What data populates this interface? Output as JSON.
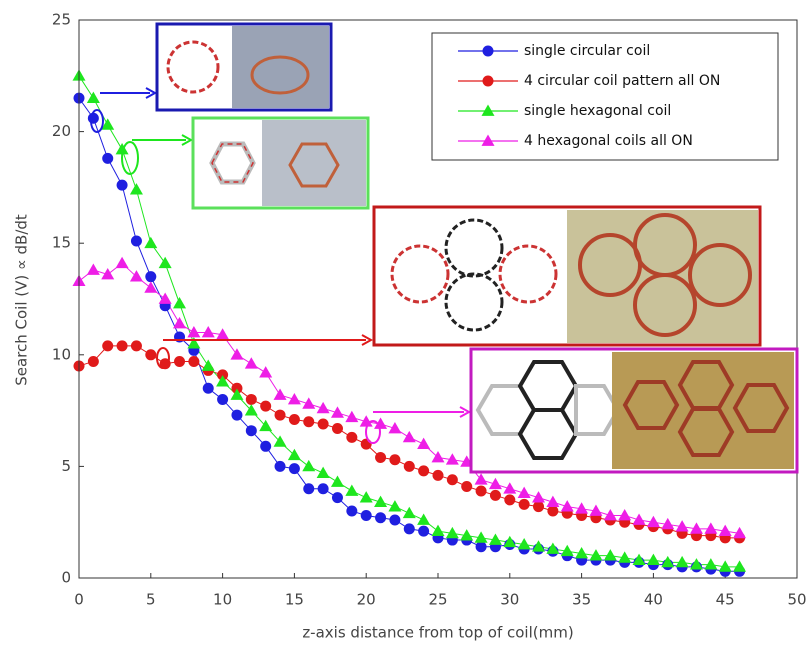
{
  "chart_data": {
    "type": "line",
    "x_label": "z-axis distance from top of coil(mm)",
    "y_label": "Search Coil (V) ∝ dB/dt",
    "x": [
      0,
      1,
      2,
      3,
      4,
      5,
      6,
      7,
      8,
      9,
      10,
      11,
      12,
      13,
      14,
      15,
      16,
      17,
      18,
      19,
      20,
      21,
      22,
      23,
      24,
      25,
      26,
      27,
      28,
      29,
      30,
      31,
      32,
      33,
      34,
      35,
      36,
      37,
      38,
      39,
      40,
      41,
      42,
      43,
      44,
      45,
      46
    ],
    "xlim": [
      0,
      50
    ],
    "xticks": [
      0,
      5,
      10,
      15,
      20,
      25,
      30,
      35,
      40,
      45,
      50
    ],
    "ylim": [
      0,
      25
    ],
    "yticks": [
      0,
      5,
      10,
      15,
      20,
      25
    ],
    "legend": "upper right",
    "series": [
      {
        "name": "single circular coil",
        "color": "#1f1fe0",
        "marker": "o",
        "values": [
          21.5,
          20.6,
          18.8,
          17.6,
          15.1,
          13.5,
          12.2,
          10.8,
          10.2,
          8.5,
          8.0,
          7.3,
          6.6,
          5.9,
          5.0,
          4.9,
          4.0,
          4.0,
          3.6,
          3.0,
          2.8,
          2.7,
          2.6,
          2.2,
          2.1,
          1.8,
          1.7,
          1.7,
          1.4,
          1.4,
          1.5,
          1.3,
          1.3,
          1.2,
          1.0,
          0.8,
          0.8,
          0.8,
          0.7,
          0.7,
          0.6,
          0.6,
          0.5,
          0.5,
          0.4,
          0.3,
          0.3
        ]
      },
      {
        "name": "4 circular coil pattern all ON",
        "color": "#e01a1a",
        "marker": "o",
        "values": [
          9.5,
          9.7,
          10.4,
          10.4,
          10.4,
          10.0,
          9.6,
          9.7,
          9.7,
          9.3,
          9.1,
          8.5,
          8.0,
          7.7,
          7.3,
          7.1,
          7.0,
          6.9,
          6.7,
          6.3,
          6.0,
          5.4,
          5.3,
          5.0,
          4.8,
          4.6,
          4.4,
          4.1,
          3.9,
          3.7,
          3.5,
          3.3,
          3.2,
          3.0,
          2.9,
          2.8,
          2.7,
          2.6,
          2.5,
          2.4,
          2.3,
          2.2,
          2.0,
          1.9,
          1.9,
          1.8,
          1.8
        ]
      },
      {
        "name": "single hexagonal coil",
        "color": "#1ee61e",
        "marker": "^",
        "values": [
          22.5,
          21.5,
          20.3,
          19.2,
          17.4,
          15.0,
          14.1,
          12.3,
          10.5,
          9.5,
          8.8,
          8.2,
          7.5,
          6.8,
          6.1,
          5.5,
          5.0,
          4.7,
          4.3,
          3.9,
          3.6,
          3.4,
          3.2,
          2.9,
          2.6,
          2.1,
          2.0,
          1.9,
          1.8,
          1.7,
          1.6,
          1.5,
          1.4,
          1.3,
          1.2,
          1.1,
          1.0,
          1.0,
          0.9,
          0.8,
          0.8,
          0.7,
          0.7,
          0.6,
          0.6,
          0.5,
          0.5
        ]
      },
      {
        "name": "4 hexagonal coils all ON",
        "color": "#ee1ee6",
        "marker": "^",
        "values": [
          13.3,
          13.8,
          13.6,
          14.1,
          13.5,
          13.0,
          12.5,
          11.4,
          11.0,
          11.0,
          10.9,
          10.0,
          9.6,
          9.2,
          8.2,
          8.0,
          7.8,
          7.6,
          7.4,
          7.2,
          7.0,
          6.9,
          6.7,
          6.3,
          6.0,
          5.4,
          5.3,
          5.2,
          4.4,
          4.2,
          4.0,
          3.8,
          3.6,
          3.4,
          3.2,
          3.1,
          3.0,
          2.8,
          2.8,
          2.6,
          2.5,
          2.4,
          2.3,
          2.2,
          2.2,
          2.1,
          2.0
        ]
      }
    ]
  }
}
